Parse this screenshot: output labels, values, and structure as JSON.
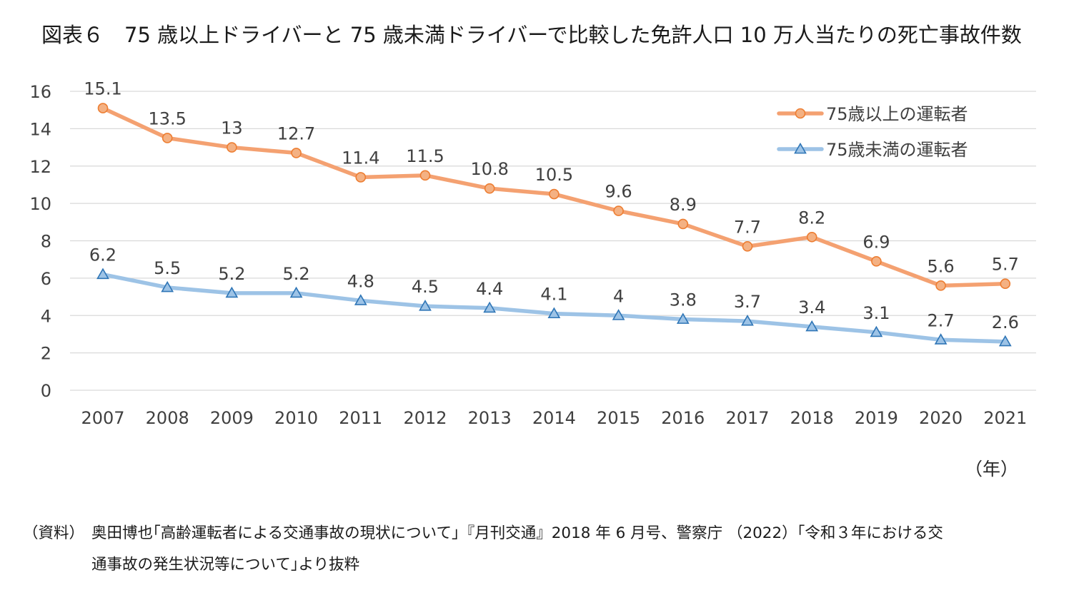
{
  "title": "図表６　75 歳以上ドライバーと 75 歳未満ドライバーで比較した免許人口 10 万人当たりの死亡事故件数",
  "unit_label": "（年）",
  "source": {
    "label": "（資料）",
    "line1": "奥田博也｢高齢運転者による交通事故の現状について｣『月刊交通』2018 年 6 月号、警察庁 （2022）「令和３年における交",
    "line2": "通事故の発生状況等について｣より抜粋"
  },
  "colors": {
    "series_over75": "#F4A171",
    "series_under75": "#9DC3E6",
    "marker_over75_fill": "#F4B183",
    "marker_over75_stroke": "#ED7D31",
    "marker_under75_fill": "#9DC3E6",
    "marker_under75_stroke": "#2E75B6",
    "grid": "#D9D9D9",
    "axis_text": "#404040"
  },
  "chart_data": {
    "type": "line",
    "title": "図表６　75 歳以上ドライバーと 75 歳未満ドライバーで比較した免許人口 10 万人当たりの死亡事故件数",
    "xlabel": "（年）",
    "ylabel": "",
    "ylim": [
      0,
      16
    ],
    "yticks": [
      0,
      2,
      4,
      6,
      8,
      10,
      12,
      14,
      16
    ],
    "grid": true,
    "legend_position": "top-right",
    "categories": [
      "2007",
      "2008",
      "2009",
      "2010",
      "2011",
      "2012",
      "2013",
      "2014",
      "2015",
      "2016",
      "2017",
      "2018",
      "2019",
      "2020",
      "2021"
    ],
    "series": [
      {
        "name": "75歳以上の運転者",
        "marker": "circle",
        "values": [
          15.1,
          13.5,
          13,
          12.7,
          11.4,
          11.5,
          10.8,
          10.5,
          9.6,
          8.9,
          7.7,
          8.2,
          6.9,
          5.6,
          5.7
        ]
      },
      {
        "name": "75歳未満の運転者",
        "marker": "triangle",
        "values": [
          6.2,
          5.5,
          5.2,
          5.2,
          4.8,
          4.5,
          4.4,
          4.1,
          4,
          3.8,
          3.7,
          3.4,
          3.1,
          2.7,
          2.6
        ]
      }
    ]
  }
}
